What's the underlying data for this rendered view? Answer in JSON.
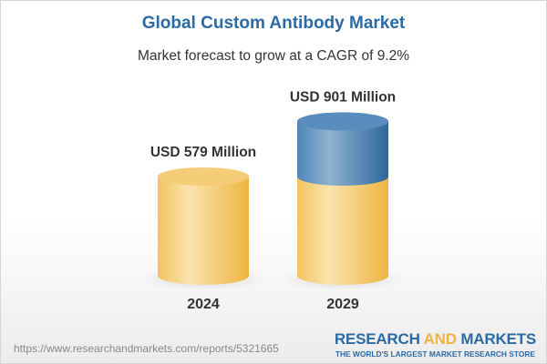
{
  "chart_data": {
    "type": "bar",
    "style": "3d-cylinder",
    "title": "Global Custom Antibody Market",
    "subtitle": "Market forecast to grow at a CAGR of 9.2%",
    "categories": [
      "2024",
      "2029"
    ],
    "values": [
      579,
      901
    ],
    "unit": "USD Million",
    "data_labels": [
      "USD 579 Million",
      "USD 901 Million"
    ],
    "colors": {
      "base": "#f2c25a",
      "growth": "#3f7cb0"
    },
    "grid": false,
    "axes_visible": false
  },
  "footer": {
    "url": "https://www.researchandmarkets.com/reports/5321665",
    "logo": {
      "word1": "RESEARCH",
      "word2": "AND",
      "word3": "MARKETS",
      "tagline": "THE WORLD'S LARGEST MARKET RESEARCH STORE"
    }
  }
}
